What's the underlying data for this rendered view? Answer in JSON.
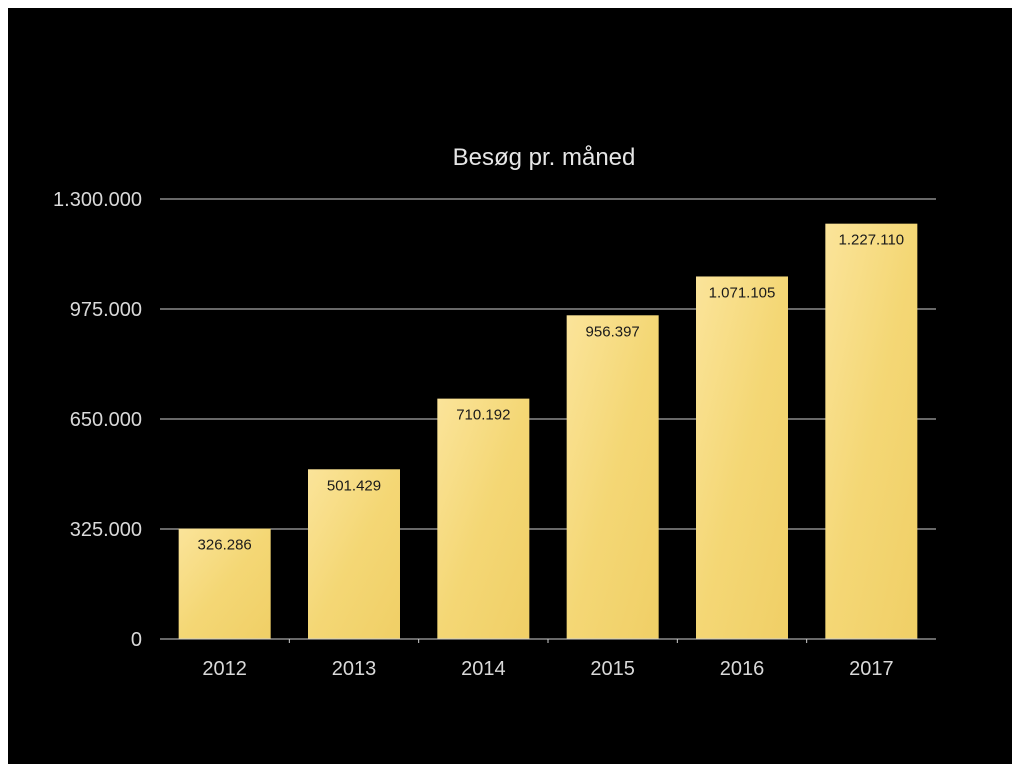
{
  "chart_data": {
    "type": "bar",
    "title": "Besøg pr. måned",
    "xlabel": "",
    "ylabel": "",
    "categories": [
      "2012",
      "2013",
      "2014",
      "2015",
      "2016",
      "2017"
    ],
    "values": [
      326286,
      501429,
      710192,
      956397,
      1071105,
      1227110
    ],
    "value_labels": [
      "326.286",
      "501.429",
      "710.192",
      "956.397",
      "1.071.105",
      "1.227.110"
    ],
    "ylim": [
      0,
      1300000
    ],
    "yticks": [
      0,
      325000,
      650000,
      975000,
      1300000
    ],
    "ytick_labels": [
      "0",
      "325.000",
      "650.000",
      "975.000",
      "1.300.000"
    ],
    "grid": true,
    "colors": {
      "background": "#000000",
      "bar": "#f5d76e",
      "bar_highlight": "#fbe9a3",
      "text": "#d9d9d9",
      "label": "#1a1a1a"
    }
  }
}
